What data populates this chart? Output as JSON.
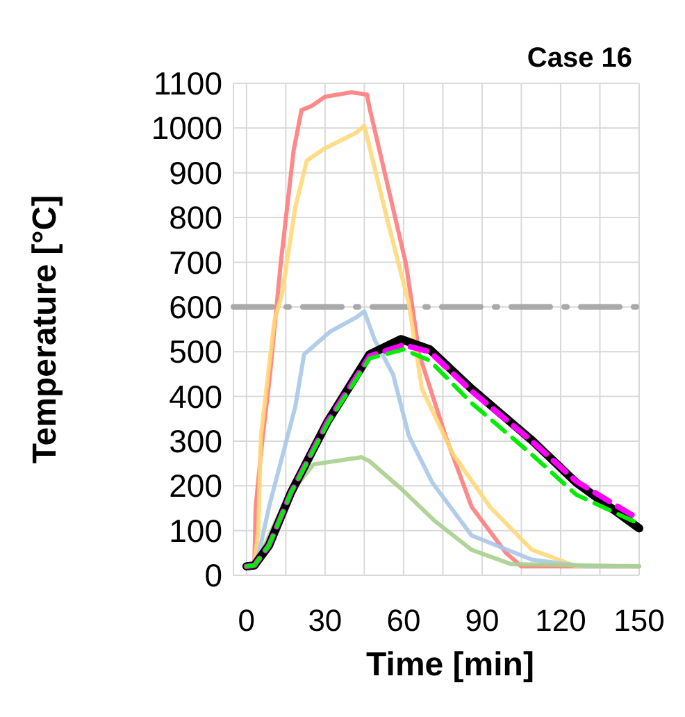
{
  "chart_data": {
    "type": "line",
    "title": "Case 16",
    "xlabel": "Time [min]",
    "ylabel": "Temperature [°C]",
    "xlim": [
      -5,
      150
    ],
    "xticks": [
      0,
      {
        "value": 15,
        "label": null
      },
      30,
      {
        "value": 45,
        "label": null
      },
      60,
      {
        "value": 75,
        "label": null
      },
      90,
      {
        "value": 105,
        "label": null
      },
      120,
      {
        "value": 135,
        "label": null
      },
      150
    ],
    "ylim": [
      0,
      1100
    ],
    "yticks": [
      0,
      100,
      200,
      300,
      400,
      500,
      600,
      700,
      800,
      900,
      1000,
      1100
    ],
    "grid": true,
    "ref_lines": [
      {
        "axis": "y",
        "value": 600,
        "color": "#aaaaaa",
        "line_style": "dashed"
      }
    ],
    "series": [
      {
        "color": "#ff7c7c",
        "x": [
          0,
          3,
          3.5,
          6,
          9,
          13,
          18,
          21,
          25,
          30,
          40,
          46,
          47,
          54,
          61,
          66,
          76,
          86,
          99,
          105,
          150
        ],
        "values": [
          20,
          25,
          153,
          300,
          450,
          694,
          950,
          1040,
          1050,
          1070,
          1080,
          1075,
          1045,
          870,
          694,
          494,
          312,
          153,
          51,
          20,
          20
        ]
      },
      {
        "color": "#ffd878",
        "x": [
          0,
          3,
          4.5,
          5.5,
          10.6,
          13.6,
          18.6,
          23,
          30,
          42,
          45,
          54,
          62,
          67,
          79,
          93,
          109,
          126,
          150
        ],
        "values": [
          20,
          25,
          100,
          312,
          567,
          630,
          822,
          927,
          955,
          990,
          1005,
          790,
          608,
          417,
          270,
          153,
          57,
          20,
          20
        ]
      },
      {
        "color": "#a8c8e8",
        "x": [
          0,
          4,
          8.6,
          18.6,
          22,
          32,
          42,
          45,
          49,
          56,
          62,
          71,
          86,
          109,
          129,
          150
        ],
        "values": [
          20,
          30,
          153,
          376,
          494,
          545,
          577,
          590,
          526,
          449,
          312,
          207,
          89,
          35,
          20,
          20
        ]
      },
      {
        "color": "#a9d08e",
        "x": [
          0,
          4,
          7,
          12,
          17,
          25.6,
          44,
          47,
          59,
          72,
          86,
          101,
          150
        ],
        "values": [
          20,
          25,
          67,
          130,
          185,
          248,
          264,
          255,
          194,
          121,
          57,
          25,
          20
        ]
      },
      {
        "color": "#000000",
        "x": [
          0,
          3,
          8.6,
          17,
          31,
          47,
          59,
          70,
          86,
          109,
          126,
          150
        ],
        "values": [
          20,
          22,
          67,
          185,
          344,
          494,
          528,
          505,
          417,
          302,
          207,
          105
        ]
      },
      {
        "color": "#ff00ff",
        "line_style": "dashed",
        "x": [
          0,
          3,
          8.6,
          17,
          31,
          47,
          60,
          70,
          86,
          109,
          126,
          150
        ],
        "values": [
          20,
          22,
          67,
          185,
          344,
          490,
          515,
          500,
          412,
          300,
          210,
          125
        ]
      },
      {
        "color": "#00ee00",
        "line_style": "dashed",
        "x": [
          0,
          3,
          8.6,
          17,
          31,
          47,
          60,
          70,
          86,
          109,
          126,
          150
        ],
        "values": [
          20,
          22,
          67,
          185,
          340,
          485,
          505,
          480,
          385,
          270,
          180,
          115
        ]
      }
    ]
  }
}
